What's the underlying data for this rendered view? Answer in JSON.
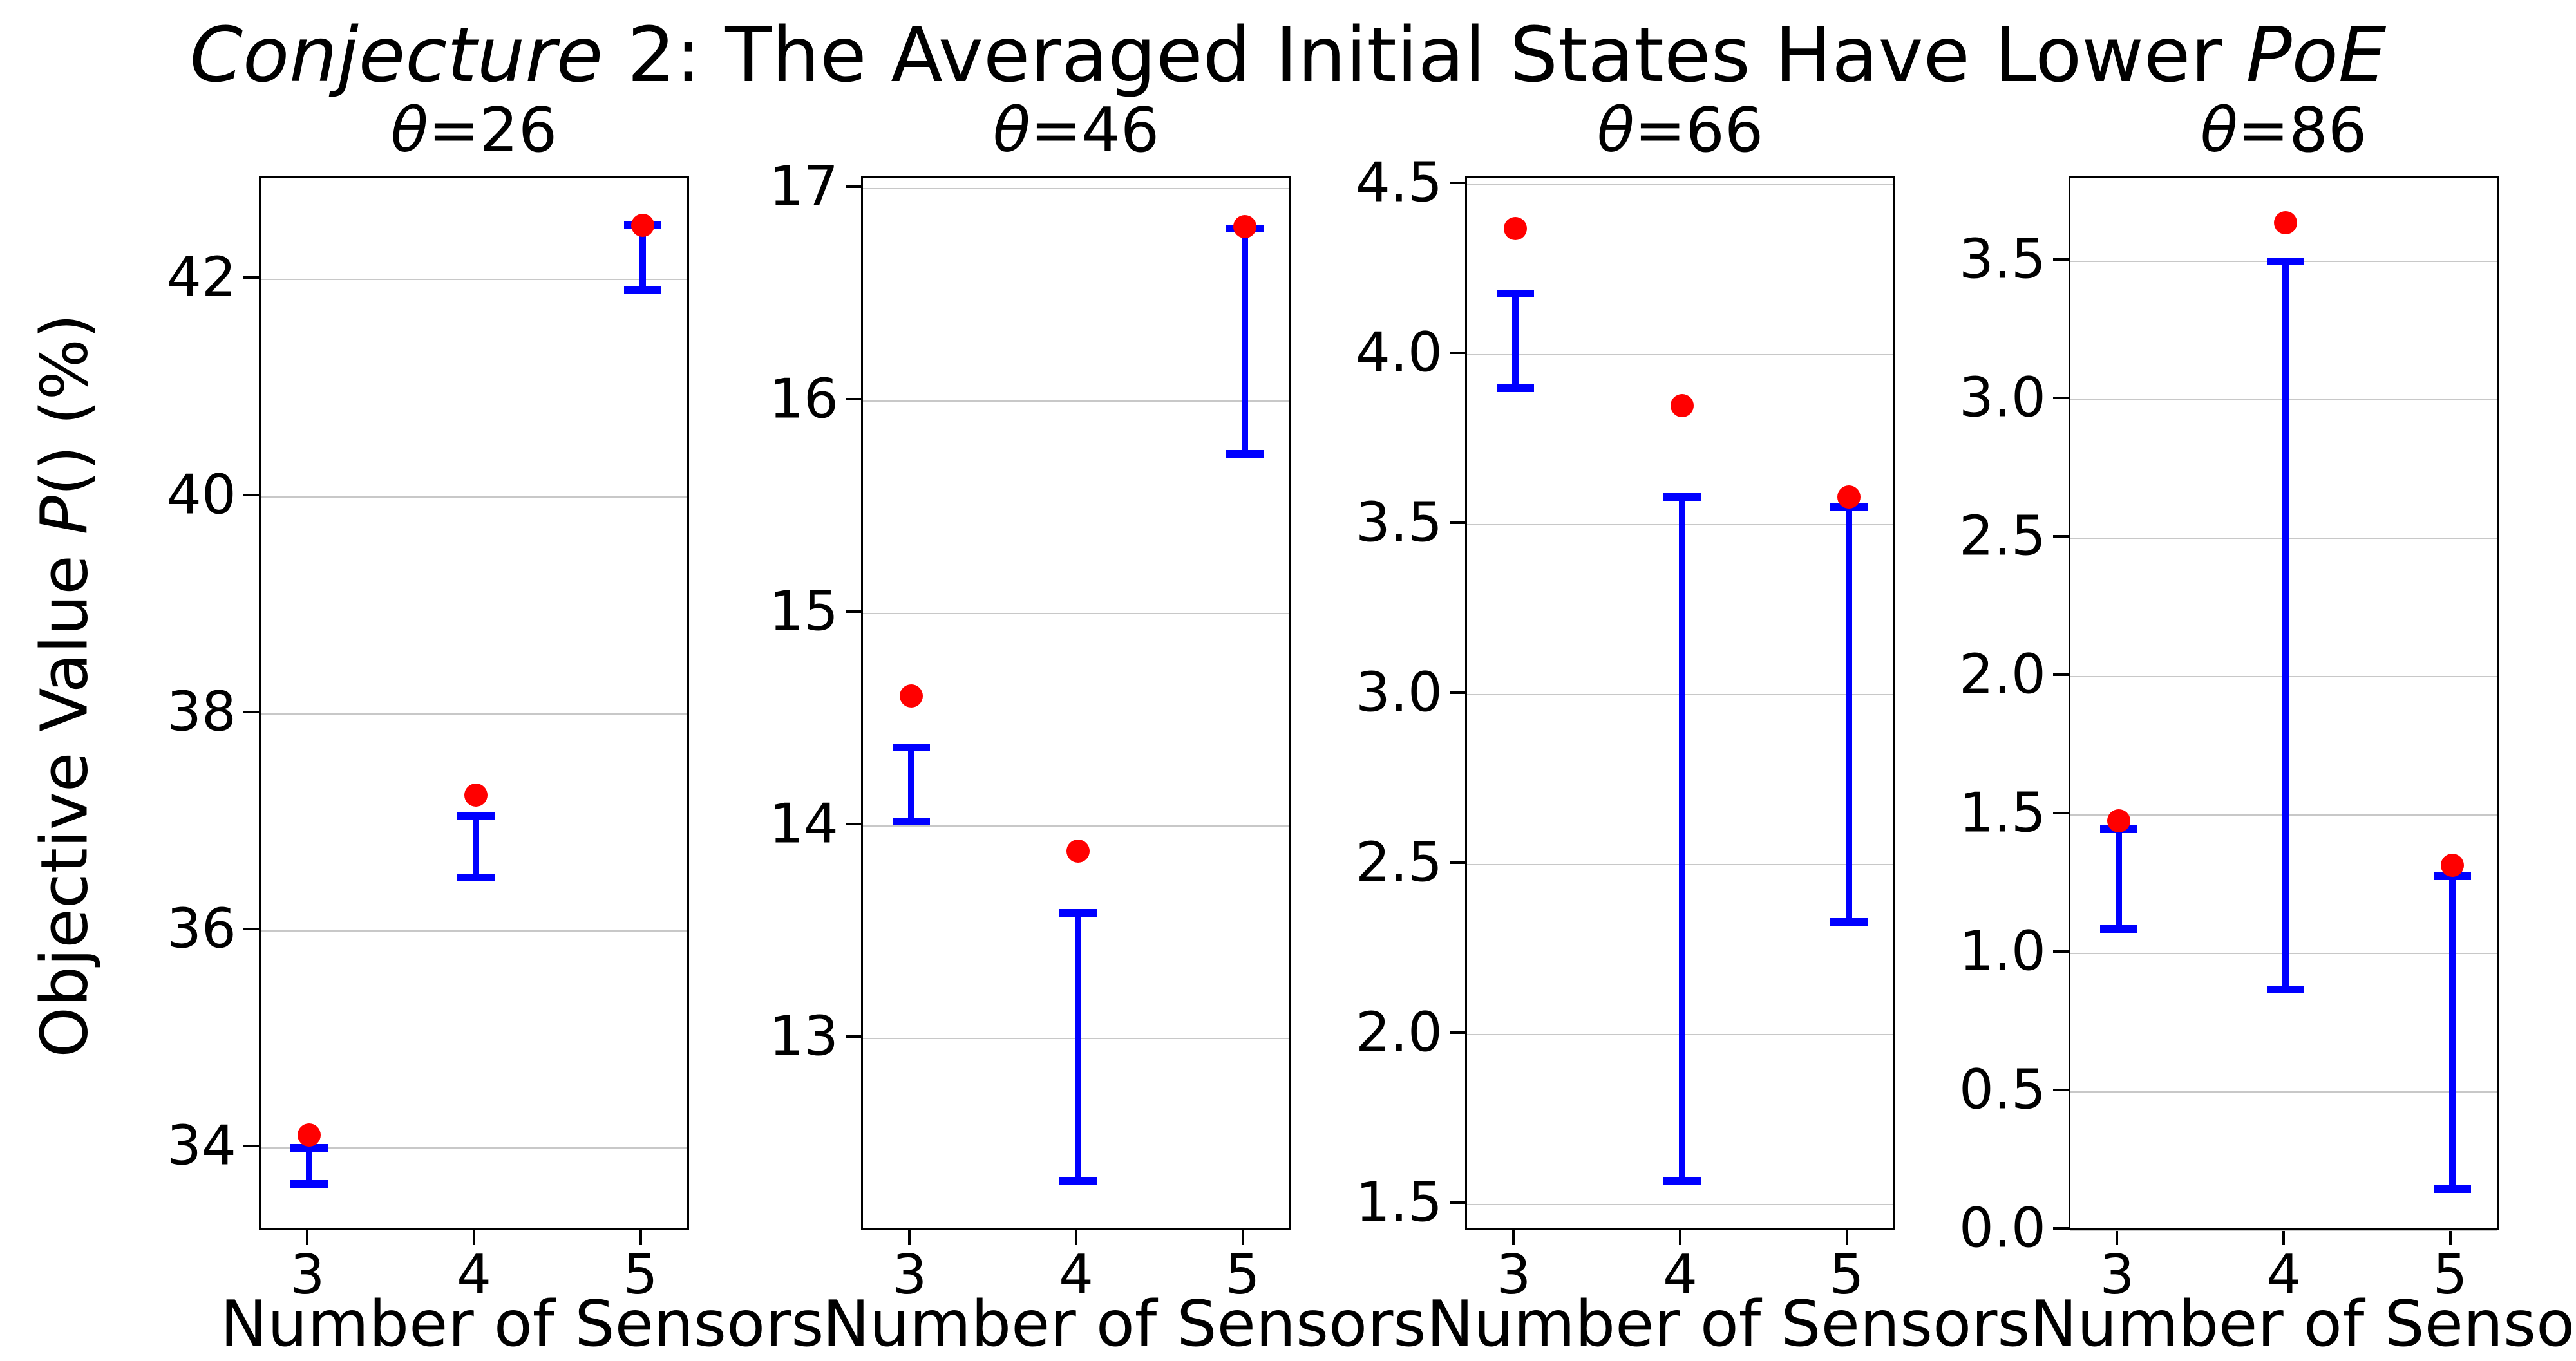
{
  "figure_title": "Conjecture 2: The Averaged Initial States Have Lower PoE",
  "title_parts": {
    "p1": "Conjecture",
    "p2": " 2: The Averaged Initial States Have Lower ",
    "p3": "PoE"
  },
  "ylabel_parts": {
    "p1": "Objective Value ",
    "p2": "P",
    "p3": "() (%)"
  },
  "chart_data": {
    "type": "scatter",
    "subtype": "dots-with-error-bars",
    "title": "Conjecture 2: The Averaged Initial States Have Lower PoE",
    "xlabel": "Number of Sensors",
    "ylabel": "Objective Value P() (%)",
    "categories": [
      "3",
      "4",
      "5"
    ],
    "grid": "horizontal-only",
    "legend": "none",
    "marker_color": "#ff0000",
    "errorbar_color": "#0000ff",
    "grid_color": "#c8c8c8",
    "spine_color": "#000000",
    "subplots": [
      {
        "title_theta": "θ",
        "title_rest": "=26",
        "title": "θ=26",
        "ylim": [
          33.23,
          42.94
        ],
        "yticks": [
          "34",
          "36",
          "38",
          "40",
          "42"
        ],
        "points": [
          {
            "x": "3",
            "dot": 34.12,
            "bar_low": 33.67,
            "bar_high": 34.0
          },
          {
            "x": "4",
            "dot": 37.25,
            "bar_low": 36.49,
            "bar_high": 37.06
          },
          {
            "x": "5",
            "dot": 42.5,
            "bar_low": 41.9,
            "bar_high": 42.5
          }
        ]
      },
      {
        "title_theta": "θ",
        "title_rest": "=46",
        "title": "θ=46",
        "ylim": [
          12.09,
          17.05
        ],
        "yticks": [
          "13",
          "14",
          "15",
          "16",
          "17"
        ],
        "points": [
          {
            "x": "3",
            "dot": 14.61,
            "bar_low": 14.02,
            "bar_high": 14.37
          },
          {
            "x": "4",
            "dot": 13.88,
            "bar_low": 12.33,
            "bar_high": 13.59
          },
          {
            "x": "5",
            "dot": 16.82,
            "bar_low": 15.75,
            "bar_high": 16.81
          }
        ]
      },
      {
        "title_theta": "θ",
        "title_rest": "=66",
        "title": "θ=66",
        "ylim": [
          1.42,
          4.52
        ],
        "yticks": [
          "1.5",
          "2.0",
          "2.5",
          "3.0",
          "3.5",
          "4.0",
          "4.5"
        ],
        "points": [
          {
            "x": "3",
            "dot": 4.37,
            "bar_low": 3.9,
            "bar_high": 4.18
          },
          {
            "x": "4",
            "dot": 3.85,
            "bar_low": 1.57,
            "bar_high": 3.58
          },
          {
            "x": "5",
            "dot": 3.58,
            "bar_low": 2.33,
            "bar_high": 3.55
          }
        ]
      },
      {
        "title_theta": "θ",
        "title_rest": "=86",
        "title": "θ=86",
        "ylim": [
          -0.004,
          3.803
        ],
        "yticks": [
          "0.0",
          "0.5",
          "1.0",
          "1.5",
          "2.0",
          "2.5",
          "3.0",
          "3.5"
        ],
        "points": [
          {
            "x": "3",
            "dot": 1.48,
            "bar_low": 1.09,
            "bar_high": 1.45
          },
          {
            "x": "4",
            "dot": 3.64,
            "bar_low": 0.87,
            "bar_high": 3.5
          },
          {
            "x": "5",
            "dot": 1.32,
            "bar_low": 0.15,
            "bar_high": 1.28
          }
        ]
      }
    ]
  }
}
